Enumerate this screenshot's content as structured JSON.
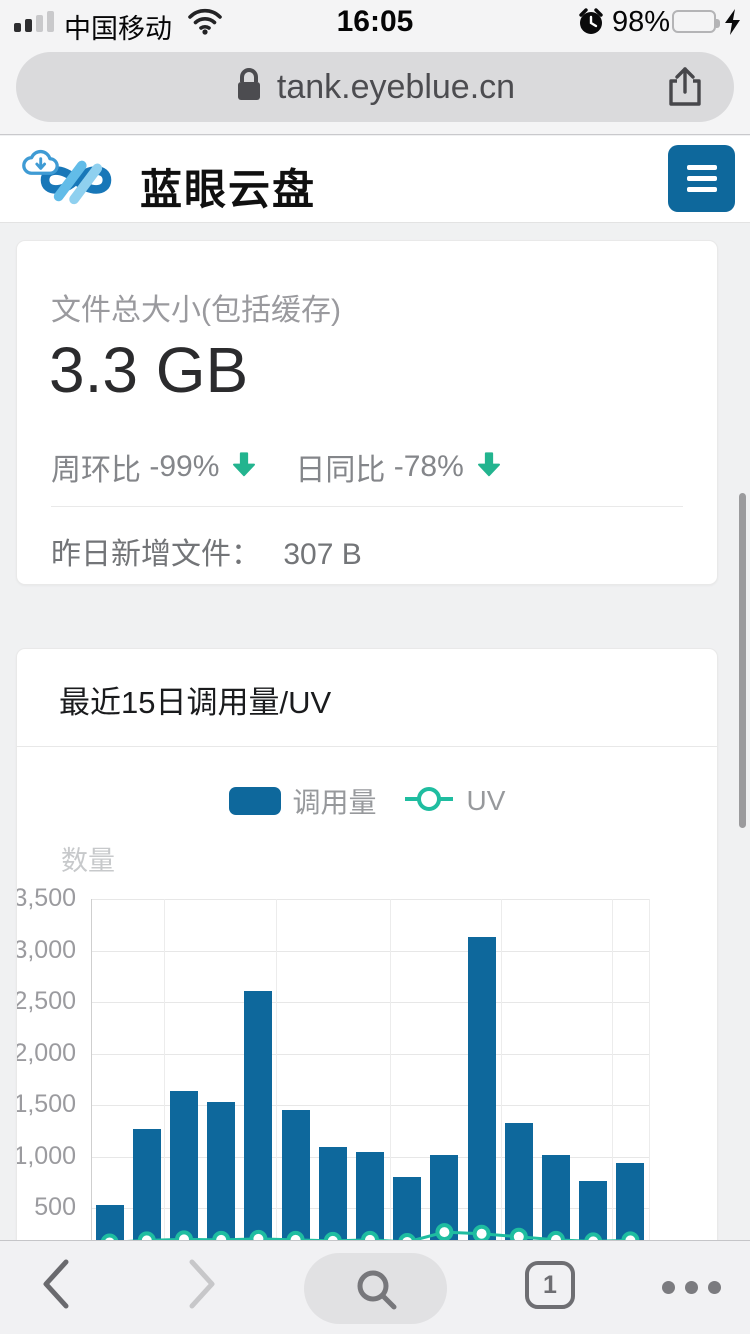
{
  "status_bar": {
    "carrier": "中国移动",
    "time": "16:05",
    "battery_percent": "98%",
    "battery_level": 0.85,
    "signal_bars_filled": 2,
    "signal_bars_total": 4,
    "icons": [
      "cellular-signal-icon",
      "wifi-icon",
      "alarm-clock-icon",
      "battery-icon",
      "charging-bolt-icon"
    ]
  },
  "url_bar": {
    "url": "tank.eyeblue.cn",
    "icons": [
      "lock-icon",
      "share-icon"
    ]
  },
  "header": {
    "app_title": "蓝眼云盘",
    "logo": "cloud-infinity-logo",
    "menu_icon": "hamburger-menu-icon"
  },
  "stats_card": {
    "label": "文件总大小(包括缓存)",
    "value": "3.3 GB",
    "week_ring_label": "周环比",
    "week_ring_value": "-99%",
    "day_ratio_label": "日同比",
    "day_ratio_value": "-78%",
    "yesterday_label": "昨日新增文件：",
    "yesterday_value": "307 B"
  },
  "chart_card": {
    "title": "最近15日调用量/UV",
    "axis_title": "数量",
    "legend": [
      {
        "label": "调用量",
        "type": "bar"
      },
      {
        "label": "UV",
        "type": "line"
      }
    ]
  },
  "chart_data": {
    "type": "bar",
    "title": "最近15日调用量/UV",
    "ylabel": "数量",
    "ylim": [
      0,
      3500
    ],
    "y_ticks": [
      "3,500",
      "3,000",
      "2,500",
      "2,000",
      "1,500",
      "1,000",
      "500"
    ],
    "x_tick_labels_visible": false,
    "grid": true,
    "legend_position": "top",
    "series": [
      {
        "name": "调用量",
        "type": "bar",
        "color": "#0e689c",
        "values": [
          530,
          1270,
          1640,
          1530,
          2610,
          1450,
          1100,
          1050,
          800,
          1020,
          3130,
          1330,
          1020,
          770,
          940
        ]
      },
      {
        "name": "UV",
        "type": "line",
        "color": "#1fbda0",
        "values": [
          170,
          190,
          200,
          195,
          205,
          195,
          185,
          195,
          175,
          270,
          255,
          225,
          195,
          180,
          190
        ]
      }
    ]
  },
  "toolbar": {
    "tab_count": "1",
    "icons": [
      "back-chevron-icon",
      "forward-chevron-icon",
      "search-icon",
      "tabs-icon",
      "more-dots-icon"
    ]
  },
  "colors": {
    "accent_blue": "#0e689c",
    "accent_teal": "#23b48f",
    "uv_marker_teal": "#1fbda0",
    "battery_green": "#5bd35f",
    "card_bg": "#ffffff",
    "page_bg": "#f0f1f2"
  }
}
